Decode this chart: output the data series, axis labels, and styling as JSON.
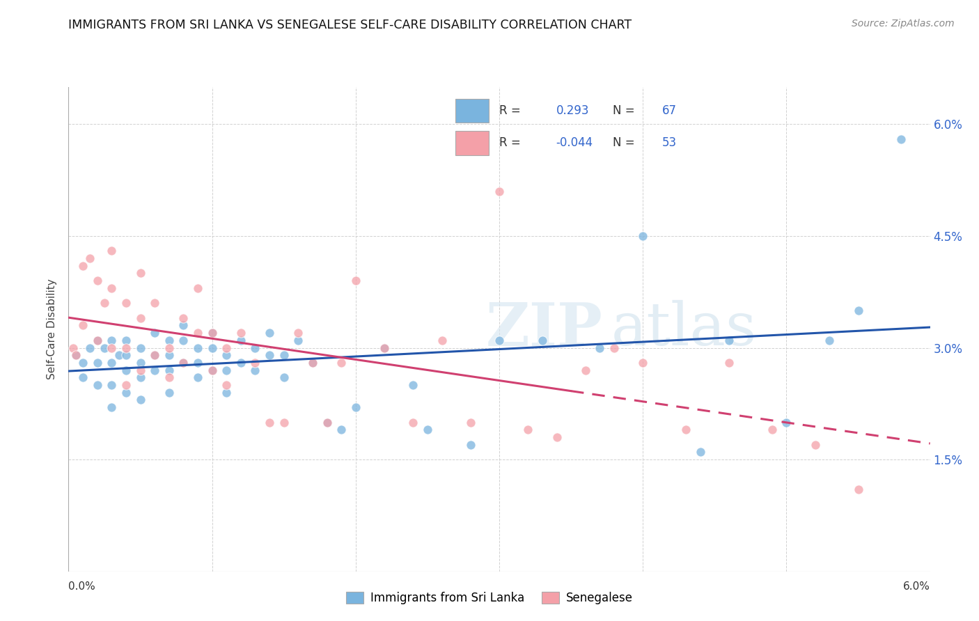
{
  "title": "IMMIGRANTS FROM SRI LANKA VS SENEGALESE SELF-CARE DISABILITY CORRELATION CHART",
  "source": "Source: ZipAtlas.com",
  "ylabel": "Self-Care Disability",
  "xmin": 0.0,
  "xmax": 0.06,
  "ymin": 0.0,
  "ymax": 0.065,
  "yticks": [
    0.015,
    0.03,
    0.045,
    0.06
  ],
  "ytick_labels": [
    "1.5%",
    "3.0%",
    "4.5%",
    "6.0%"
  ],
  "blue_color": "#7ab4de",
  "pink_color": "#f4a0a8",
  "trendline_blue": "#2255aa",
  "trendline_pink": "#d04070",
  "sri_lanka_x": [
    0.0005,
    0.001,
    0.001,
    0.0015,
    0.002,
    0.002,
    0.002,
    0.0025,
    0.003,
    0.003,
    0.003,
    0.003,
    0.0035,
    0.004,
    0.004,
    0.004,
    0.004,
    0.005,
    0.005,
    0.005,
    0.005,
    0.006,
    0.006,
    0.006,
    0.007,
    0.007,
    0.007,
    0.007,
    0.008,
    0.008,
    0.008,
    0.009,
    0.009,
    0.009,
    0.01,
    0.01,
    0.01,
    0.011,
    0.011,
    0.011,
    0.012,
    0.012,
    0.013,
    0.013,
    0.014,
    0.014,
    0.015,
    0.015,
    0.016,
    0.017,
    0.018,
    0.019,
    0.02,
    0.022,
    0.024,
    0.025,
    0.028,
    0.03,
    0.033,
    0.037,
    0.04,
    0.044,
    0.046,
    0.05,
    0.053,
    0.055,
    0.058
  ],
  "sri_lanka_y": [
    0.029,
    0.028,
    0.026,
    0.03,
    0.031,
    0.028,
    0.025,
    0.03,
    0.031,
    0.028,
    0.025,
    0.022,
    0.029,
    0.031,
    0.029,
    0.027,
    0.024,
    0.03,
    0.028,
    0.026,
    0.023,
    0.032,
    0.029,
    0.027,
    0.031,
    0.029,
    0.027,
    0.024,
    0.033,
    0.031,
    0.028,
    0.03,
    0.028,
    0.026,
    0.032,
    0.03,
    0.027,
    0.029,
    0.027,
    0.024,
    0.031,
    0.028,
    0.03,
    0.027,
    0.032,
    0.029,
    0.029,
    0.026,
    0.031,
    0.028,
    0.02,
    0.019,
    0.022,
    0.03,
    0.025,
    0.019,
    0.017,
    0.031,
    0.031,
    0.03,
    0.045,
    0.016,
    0.031,
    0.02,
    0.031,
    0.035,
    0.058
  ],
  "senegal_x": [
    0.0003,
    0.0005,
    0.001,
    0.001,
    0.0015,
    0.002,
    0.002,
    0.0025,
    0.003,
    0.003,
    0.003,
    0.004,
    0.004,
    0.004,
    0.005,
    0.005,
    0.005,
    0.006,
    0.006,
    0.007,
    0.007,
    0.008,
    0.008,
    0.009,
    0.009,
    0.01,
    0.01,
    0.011,
    0.011,
    0.012,
    0.013,
    0.014,
    0.015,
    0.016,
    0.017,
    0.018,
    0.019,
    0.02,
    0.022,
    0.024,
    0.026,
    0.028,
    0.03,
    0.032,
    0.034,
    0.036,
    0.038,
    0.04,
    0.043,
    0.046,
    0.049,
    0.052,
    0.055
  ],
  "senegal_y": [
    0.03,
    0.029,
    0.041,
    0.033,
    0.042,
    0.039,
    0.031,
    0.036,
    0.043,
    0.038,
    0.03,
    0.036,
    0.03,
    0.025,
    0.04,
    0.034,
    0.027,
    0.036,
    0.029,
    0.03,
    0.026,
    0.034,
    0.028,
    0.038,
    0.032,
    0.032,
    0.027,
    0.03,
    0.025,
    0.032,
    0.028,
    0.02,
    0.02,
    0.032,
    0.028,
    0.02,
    0.028,
    0.039,
    0.03,
    0.02,
    0.031,
    0.02,
    0.051,
    0.019,
    0.018,
    0.027,
    0.03,
    0.028,
    0.019,
    0.028,
    0.019,
    0.017,
    0.011
  ]
}
